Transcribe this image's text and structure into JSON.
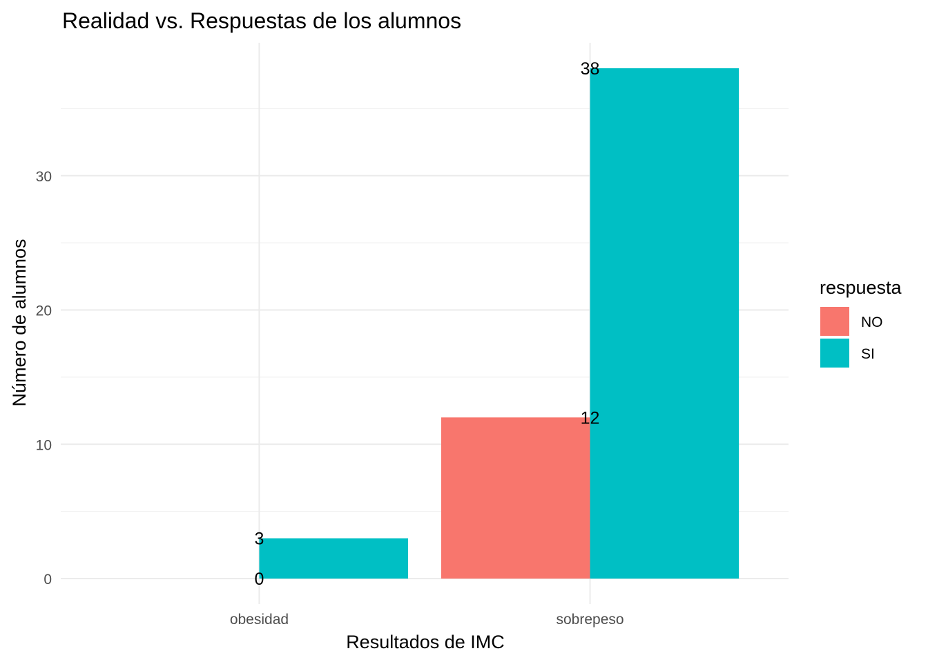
{
  "chart_data": {
    "type": "bar",
    "title": "Realidad vs. Respuestas de los alumnos",
    "xlabel": "Resultados de IMC",
    "ylabel": "Número de alumnos",
    "categories": [
      "obesidad",
      "sobrepeso"
    ],
    "series": [
      {
        "name": "NO",
        "values": [
          0,
          12
        ],
        "color": "#F8766D"
      },
      {
        "name": "SI",
        "values": [
          3,
          38
        ],
        "color": "#00BFC4"
      }
    ],
    "data_labels": [
      {
        "category": "obesidad",
        "series": "NO",
        "text": "0"
      },
      {
        "category": "obesidad",
        "series": "SI",
        "text": "3"
      },
      {
        "category": "sobrepeso",
        "series": "NO",
        "text": "12"
      },
      {
        "category": "sobrepeso",
        "series": "SI",
        "text": "38"
      }
    ],
    "yticks": [
      0,
      10,
      20,
      30
    ],
    "ylim": [
      -1.9,
      39.9
    ],
    "grid": true,
    "legend": {
      "title": "respuesta",
      "position": "right",
      "entries": [
        "NO",
        "SI"
      ]
    }
  }
}
